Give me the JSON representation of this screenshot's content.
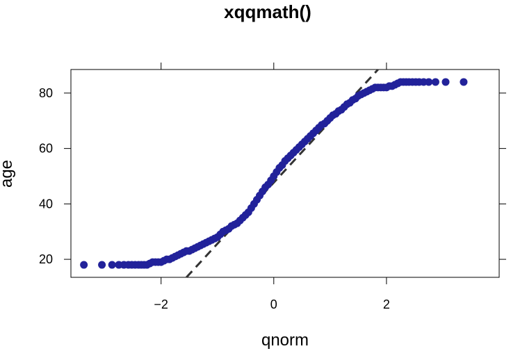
{
  "chart_data": {
    "type": "scatter",
    "title": "xqqmath()",
    "xlabel": "qnorm",
    "ylabel": "age",
    "xlim": [
      -3.6,
      4.0
    ],
    "ylim": [
      13.5,
      88.5
    ],
    "xticks": [
      -2,
      0,
      2
    ],
    "xtick_labels": [
      "−2",
      "0",
      "2"
    ],
    "yticks": [
      20,
      40,
      60,
      80
    ],
    "ytick_labels": [
      "20",
      "40",
      "60",
      "80"
    ],
    "grid": false,
    "reference_line": {
      "style": "dashed",
      "color": "#333333",
      "points": [
        [
          -1.55,
          13.5
        ],
        [
          1.85,
          88.5
        ]
      ]
    },
    "point_color": "#22229a",
    "series": [
      {
        "x": [
          -3.37,
          -3.05,
          -2.87,
          -2.75,
          -2.66,
          -2.58,
          -2.52,
          -2.46,
          -2.4,
          -2.35,
          -2.3,
          -2.25,
          -2.2,
          -2.15,
          -2.1,
          -2.05,
          -2.0,
          -1.95,
          -1.9,
          -1.85,
          -1.8,
          -1.75,
          -1.7,
          -1.65,
          -1.6,
          -1.55,
          -1.5,
          -1.45,
          -1.4,
          -1.35,
          -1.3,
          -1.25,
          -1.2,
          -1.15,
          -1.1,
          -1.05,
          -1.0,
          -0.95,
          -0.9,
          -0.85,
          -0.8,
          -0.75,
          -0.7,
          -0.65,
          -0.6,
          -0.55,
          -0.5,
          -0.45,
          -0.4,
          -0.35,
          -0.3,
          -0.25,
          -0.2,
          -0.15,
          -0.1,
          -0.05,
          0.0,
          0.05,
          0.1,
          0.15,
          0.2,
          0.25,
          0.3,
          0.35,
          0.4,
          0.45,
          0.5,
          0.55,
          0.6,
          0.65,
          0.7,
          0.75,
          0.8,
          0.85,
          0.9,
          0.95,
          1.0,
          1.05,
          1.1,
          1.15,
          1.2,
          1.25,
          1.3,
          1.35,
          1.4,
          1.45,
          1.5,
          1.55,
          1.6,
          1.65,
          1.7,
          1.75,
          1.8,
          1.85,
          1.9,
          1.95,
          2.0,
          2.05,
          2.1,
          2.15,
          2.2,
          2.25,
          2.3,
          2.35,
          2.4,
          2.46,
          2.52,
          2.58,
          2.66,
          2.75,
          2.87,
          3.05,
          3.37
        ],
        "y": [
          18,
          18,
          18,
          18,
          18,
          18,
          18,
          18,
          18,
          18,
          18,
          18,
          18.5,
          19,
          19,
          19,
          19,
          19.5,
          20,
          20,
          20.5,
          21,
          21.5,
          22,
          22.5,
          23,
          23,
          23.5,
          24,
          24.5,
          25,
          25.5,
          26,
          26.5,
          27,
          27.5,
          28,
          29,
          30,
          30.5,
          31,
          32,
          32.5,
          33,
          34,
          35,
          36,
          37,
          38.5,
          40,
          41.5,
          43,
          44.5,
          46,
          47,
          48.5,
          50,
          51.5,
          53,
          54,
          55.5,
          56.5,
          57.5,
          58.5,
          59.5,
          60.5,
          61.5,
          62.5,
          63.5,
          64.5,
          65.5,
          66.5,
          67.5,
          68.5,
          69,
          70,
          71,
          72,
          72.5,
          73.5,
          74,
          75,
          76,
          76.5,
          77.5,
          78,
          79,
          79.5,
          80,
          80.5,
          81,
          81.5,
          82,
          82,
          82,
          82,
          82,
          82.5,
          82.5,
          83,
          83.5,
          84,
          84,
          84,
          84,
          84,
          84,
          84,
          84,
          84,
          84,
          84,
          84
        ]
      }
    ]
  }
}
